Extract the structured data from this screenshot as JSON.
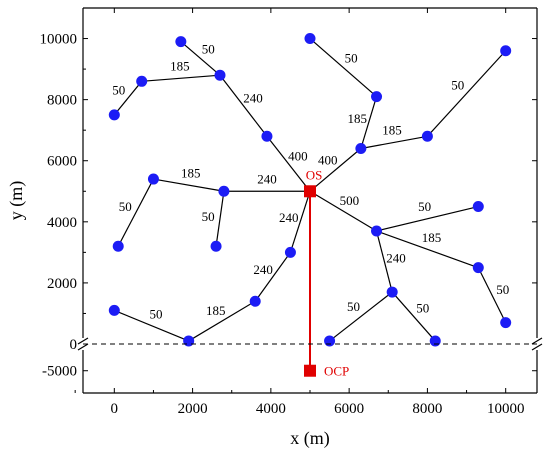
{
  "chart_data": {
    "type": "scatter",
    "xlabel": "x (m)",
    "ylabel": "y (m)",
    "xlim": [
      -800,
      10800
    ],
    "ylim_upper": [
      0,
      11000
    ],
    "ylim_lower": [
      -6000,
      -3800
    ],
    "axis_break_y": 0,
    "x_ticks": [
      "0",
      "2000",
      "4000",
      "6000",
      "8000",
      "10000"
    ],
    "y_ticks": [
      "0",
      "2000",
      "4000",
      "6000",
      "8000",
      "10000"
    ],
    "y_ticks_lower": [
      "-5000"
    ],
    "grid": false,
    "colors": {
      "turbine": "#1c1cf5",
      "substation": "#e00000",
      "line": "#000000",
      "export": "#e00000"
    },
    "nodes": [
      {
        "x": 5000,
        "y": 5000,
        "kind": "substation"
      },
      {
        "x": 1700,
        "y": 9900,
        "kind": "turbine"
      },
      {
        "x": 2700,
        "y": 8800,
        "kind": "turbine"
      },
      {
        "x": 700,
        "y": 8600,
        "kind": "turbine"
      },
      {
        "x": 0,
        "y": 7500,
        "kind": "turbine"
      },
      {
        "x": 3900,
        "y": 6800,
        "kind": "turbine"
      },
      {
        "x": 5000,
        "y": 10000,
        "kind": "turbine"
      },
      {
        "x": 6700,
        "y": 8100,
        "kind": "turbine"
      },
      {
        "x": 6300,
        "y": 6400,
        "kind": "turbine"
      },
      {
        "x": 10000,
        "y": 9600,
        "kind": "turbine"
      },
      {
        "x": 8000,
        "y": 6800,
        "kind": "turbine"
      },
      {
        "x": 1000,
        "y": 5400,
        "kind": "turbine"
      },
      {
        "x": 2800,
        "y": 5000,
        "kind": "turbine"
      },
      {
        "x": 100,
        "y": 3200,
        "kind": "turbine"
      },
      {
        "x": 2600,
        "y": 3200,
        "kind": "turbine"
      },
      {
        "x": 6700,
        "y": 3700,
        "kind": "turbine"
      },
      {
        "x": 9300,
        "y": 4500,
        "kind": "turbine"
      },
      {
        "x": 9300,
        "y": 2500,
        "kind": "turbine"
      },
      {
        "x": 10000,
        "y": 700,
        "kind": "turbine"
      },
      {
        "x": 7100,
        "y": 1700,
        "kind": "turbine"
      },
      {
        "x": 5500,
        "y": 100,
        "kind": "turbine"
      },
      {
        "x": 8200,
        "y": 100,
        "kind": "turbine"
      },
      {
        "x": 4500,
        "y": 3000,
        "kind": "turbine"
      },
      {
        "x": 3600,
        "y": 1400,
        "kind": "turbine"
      },
      {
        "x": 1900,
        "y": 100,
        "kind": "turbine"
      },
      {
        "x": 0,
        "y": 1100,
        "kind": "turbine"
      }
    ],
    "edges": [
      {
        "from": 1,
        "to": 2,
        "label": "50"
      },
      {
        "from": 3,
        "to": 2,
        "label": "185"
      },
      {
        "from": 4,
        "to": 3,
        "label": "50"
      },
      {
        "from": 2,
        "to": 5,
        "label": "240"
      },
      {
        "from": 5,
        "to": 0,
        "label": "400"
      },
      {
        "from": 6,
        "to": 7,
        "label": "50"
      },
      {
        "from": 7,
        "to": 8,
        "label": "185"
      },
      {
        "from": 9,
        "to": 10,
        "label": "50"
      },
      {
        "from": 10,
        "to": 8,
        "label": "185"
      },
      {
        "from": 8,
        "to": 0,
        "label": "400"
      },
      {
        "from": 11,
        "to": 12,
        "label": "185"
      },
      {
        "from": 13,
        "to": 11,
        "label": "50"
      },
      {
        "from": 14,
        "to": 12,
        "label": "50"
      },
      {
        "from": 12,
        "to": 0,
        "label": "240"
      },
      {
        "from": 0,
        "to": 15,
        "label": "500"
      },
      {
        "from": 16,
        "to": 15,
        "label": "50"
      },
      {
        "from": 15,
        "to": 17,
        "label": "185"
      },
      {
        "from": 17,
        "to": 18,
        "label": "50"
      },
      {
        "from": 15,
        "to": 19,
        "label": "240"
      },
      {
        "from": 20,
        "to": 19,
        "label": "50"
      },
      {
        "from": 19,
        "to": 21,
        "label": "50"
      },
      {
        "from": 0,
        "to": 22,
        "label": "240"
      },
      {
        "from": 22,
        "to": 23,
        "label": "240"
      },
      {
        "from": 23,
        "to": 24,
        "label": "185"
      },
      {
        "from": 25,
        "to": 24,
        "label": "50"
      }
    ],
    "annotations": [
      {
        "text": "OS",
        "x": 5000,
        "y": 5000,
        "color": "#e00000"
      },
      {
        "text": "OCP",
        "x": 5000,
        "y": -5000,
        "color": "#e00000"
      }
    ],
    "export_cable": {
      "from": [
        5000,
        5000
      ],
      "to": [
        5000,
        -5000
      ]
    },
    "break_line": {
      "y": 0,
      "style": "dashed"
    }
  }
}
